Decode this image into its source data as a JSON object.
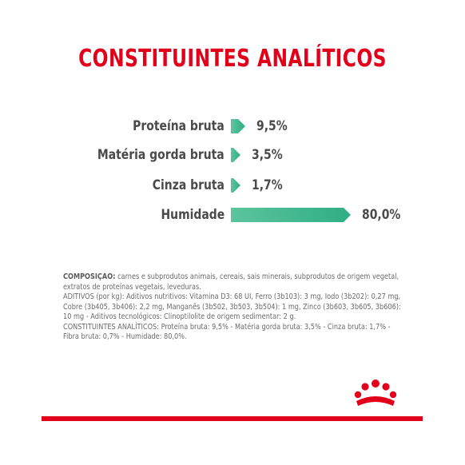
{
  "title": "CONSTITUINTES ANALÍTICOS",
  "chart_data": {
    "type": "bar",
    "categories": [
      "Proteína bruta",
      "Matéria gorda bruta",
      "Cinza bruta",
      "Humidade"
    ],
    "values": [
      9.5,
      3.5,
      1.7,
      80.0
    ],
    "value_labels": [
      "9,5%",
      "3,5%",
      "1,7%",
      "80,0%"
    ],
    "title": "CONSTITUINTES ANALÍTICOS",
    "xlabel": "",
    "ylabel": "",
    "ylim": [
      0,
      80
    ]
  },
  "composition": {
    "heading": "COMPOSIÇÃO:",
    "text": " carnes e subprodutos animais, cereais, sais minerais, subprodutos de origem vegetal, extratos de proteínas vegetais, leveduras.",
    "additives": "ADITIVOS (por kg): Aditivos nutritivos: Vitamina D3: 68 UI, Ferro (3b103): 3 mg, Iodo (3b202): 0,27 mg, Cobre (3b405, 3b406): 2,2 mg, Manganês (3b502, 3b503, 3b504): 1 mg, Zinco (3b603, 3b605, 3b606): 10 mg - Aditivos tecnológicos: Clinoptilolite de origem sedimentar: 2 g.",
    "constituents": "CONSTITUINTES ANALÍTICOS: Proteína bruta: 9,5% - Matéria gorda bruta: 3,5% - Cinza bruta: 1,7% - Fibra bruta: 0,7% - Humidade: 80,0%."
  },
  "colors": {
    "brand_red": "#e2001a",
    "bar_green": "#2fae84"
  },
  "logo": {
    "icon": "royal-canin-crown-icon"
  }
}
